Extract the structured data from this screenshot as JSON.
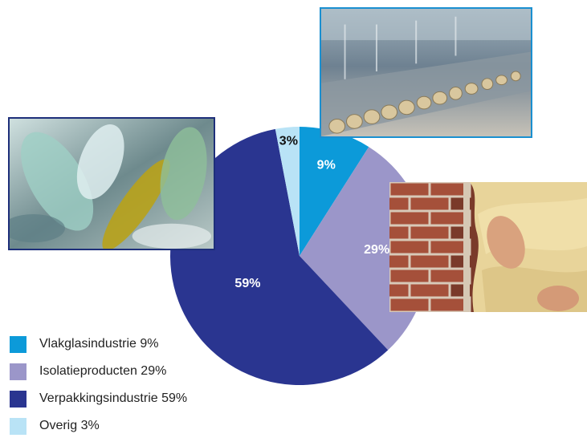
{
  "chart_data": {
    "type": "pie",
    "slices": [
      {
        "label": "Vlakglasindustrie 9%",
        "value": 9,
        "display": "9%",
        "color": "#0c9ad9",
        "label_color": "#ffffff"
      },
      {
        "label": "Isolatieproducten 29%",
        "value": 29,
        "display": "29%",
        "color": "#9b96c9",
        "label_color": "#ffffff"
      },
      {
        "label": "Verpakkingsindustrie 59%",
        "value": 59,
        "display": "59%",
        "color": "#2a3590",
        "label_color": "#ffffff"
      },
      {
        "label": "Overig 3%",
        "value": 3,
        "display": "3%",
        "color": "#b9e3f6",
        "label_color": "#111111"
      }
    ],
    "start_angle_deg": 0,
    "direction": "clockwise",
    "legend_position": "bottom-left"
  },
  "photos": [
    {
      "name": "bottles-photo",
      "subject": "glass bottles"
    },
    {
      "name": "glass-factory-photo",
      "subject": "glass production line"
    },
    {
      "name": "insulation-photo",
      "subject": "brick wall and glass wool insulation"
    }
  ]
}
